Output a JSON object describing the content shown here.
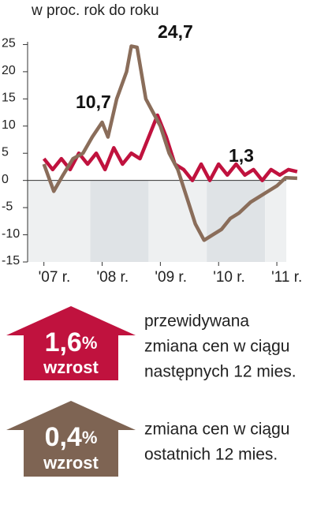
{
  "chart_data": {
    "type": "line",
    "subtitle": "w proc. rok do roku",
    "xlim": [
      2006.72,
      2011.5
    ],
    "ylim": [
      -15,
      25.5
    ],
    "yticks": [
      -15,
      -10,
      -5,
      0,
      5,
      10,
      15,
      20,
      25
    ],
    "xticks": [
      {
        "value": 2007,
        "label": "'07 r."
      },
      {
        "value": 2008,
        "label": "'08 r."
      },
      {
        "value": 2009,
        "label": "'09 r."
      },
      {
        "value": 2010,
        "label": "'10 r."
      },
      {
        "value": 2011,
        "label": "'11 r."
      }
    ],
    "series": [
      {
        "color": "#c0123e",
        "x": [
          2007.0,
          2007.15,
          2007.3,
          2007.45,
          2007.6,
          2007.75,
          2007.9,
          2008.05,
          2008.2,
          2008.35,
          2008.5,
          2008.65,
          2008.8,
          2008.95,
          2009.1,
          2009.25,
          2009.4,
          2009.55,
          2009.7,
          2009.85,
          2010.0,
          2010.15,
          2010.3,
          2010.45,
          2010.6,
          2010.75,
          2010.9,
          2011.05,
          2011.2,
          2011.35
        ],
        "values": [
          4,
          2,
          4,
          2,
          5,
          3,
          5,
          2,
          6,
          3,
          5,
          4,
          8,
          12,
          8,
          3,
          2,
          0,
          3,
          0,
          3,
          1,
          3,
          1,
          2,
          0,
          2,
          1,
          2,
          1.6
        ]
      },
      {
        "color": "#8a6d5a",
        "x": [
          2007.0,
          2007.17,
          2007.33,
          2007.5,
          2007.67,
          2007.83,
          2008.0,
          2008.1,
          2008.25,
          2008.42,
          2008.5,
          2008.6,
          2008.75,
          2008.9,
          2009.0,
          2009.15,
          2009.3,
          2009.45,
          2009.6,
          2009.75,
          2009.9,
          2010.05,
          2010.2,
          2010.35,
          2010.55,
          2010.7,
          2010.85,
          2011.0,
          2011.15,
          2011.35
        ],
        "values": [
          3,
          -2,
          1,
          4,
          5,
          8,
          10.7,
          8,
          15,
          20,
          24.7,
          24.5,
          15,
          12,
          10,
          5,
          2,
          -3,
          -8,
          -11,
          -10,
          -9,
          -7,
          -6,
          -4,
          -3,
          -2,
          -1,
          0.5,
          0.4
        ]
      }
    ],
    "annotations": [
      "10,7",
      "24,7",
      "1,3"
    ]
  },
  "boxes": [
    {
      "value": "1,6",
      "unit": "%",
      "label": "wzrost",
      "lines": [
        "przewidywana",
        "zmiana cen w ciągu",
        "następnych 12 mies."
      ]
    },
    {
      "value": "0,4",
      "unit": "%",
      "label": "wzrost",
      "lines": [
        "zmiana cen w ciągu",
        "ostatnich 12 mies."
      ]
    }
  ]
}
